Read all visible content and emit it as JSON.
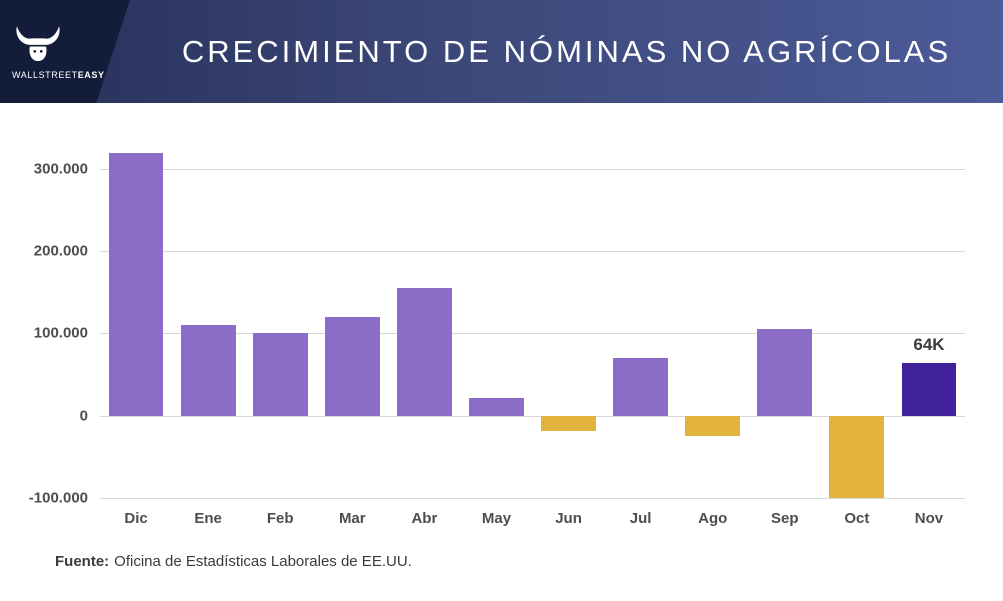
{
  "header": {
    "title": "CRECIMIENTO DE NÓMINAS NO AGRÍCOLAS",
    "brand": {
      "primary": "WALLSTREET",
      "secondary": "EASY"
    }
  },
  "footer": {
    "source_label": "Fuente:",
    "source_text": "Oficina de Estadísticas Laborales de EE.UU."
  },
  "colors": {
    "header_gradient_start": "#272f58",
    "header_gradient_end": "#4c5b99",
    "logo_background": "#131c38",
    "bar_positive": "#8b6cc7",
    "bar_negative": "#e2b33c",
    "bar_highlight": "#41219b"
  },
  "chart_data": {
    "type": "bar",
    "title": "CRECIMIENTO DE NÓMINAS NO AGRÍCOLAS",
    "categories": [
      "Dic",
      "Ene",
      "Feb",
      "Mar",
      "Abr",
      "May",
      "Jun",
      "Jul",
      "Ago",
      "Sep",
      "Oct",
      "Nov"
    ],
    "values": [
      320000,
      110000,
      100000,
      120000,
      155000,
      22000,
      -18000,
      70000,
      -25000,
      105000,
      -100000,
      64000
    ],
    "colors": [
      "positive",
      "positive",
      "positive",
      "positive",
      "positive",
      "positive",
      "negative",
      "positive",
      "negative",
      "positive",
      "negative",
      "highlight"
    ],
    "data_labels": [
      "",
      "",
      "",
      "",
      "",
      "",
      "",
      "",
      "",
      "",
      "",
      "64K"
    ],
    "palette": {
      "positive": "#8b6cc7",
      "negative": "#e2b33c",
      "highlight": "#41219b"
    },
    "xlabel": "",
    "ylabel": "",
    "ylim": [
      -100000,
      300000
    ],
    "yticks": [
      300000,
      200000,
      100000,
      0,
      -100000
    ],
    "ytick_labels": [
      "300.000",
      "200.000",
      "100.000",
      "0",
      "-100.000"
    ],
    "grid": true,
    "legend": "none"
  }
}
